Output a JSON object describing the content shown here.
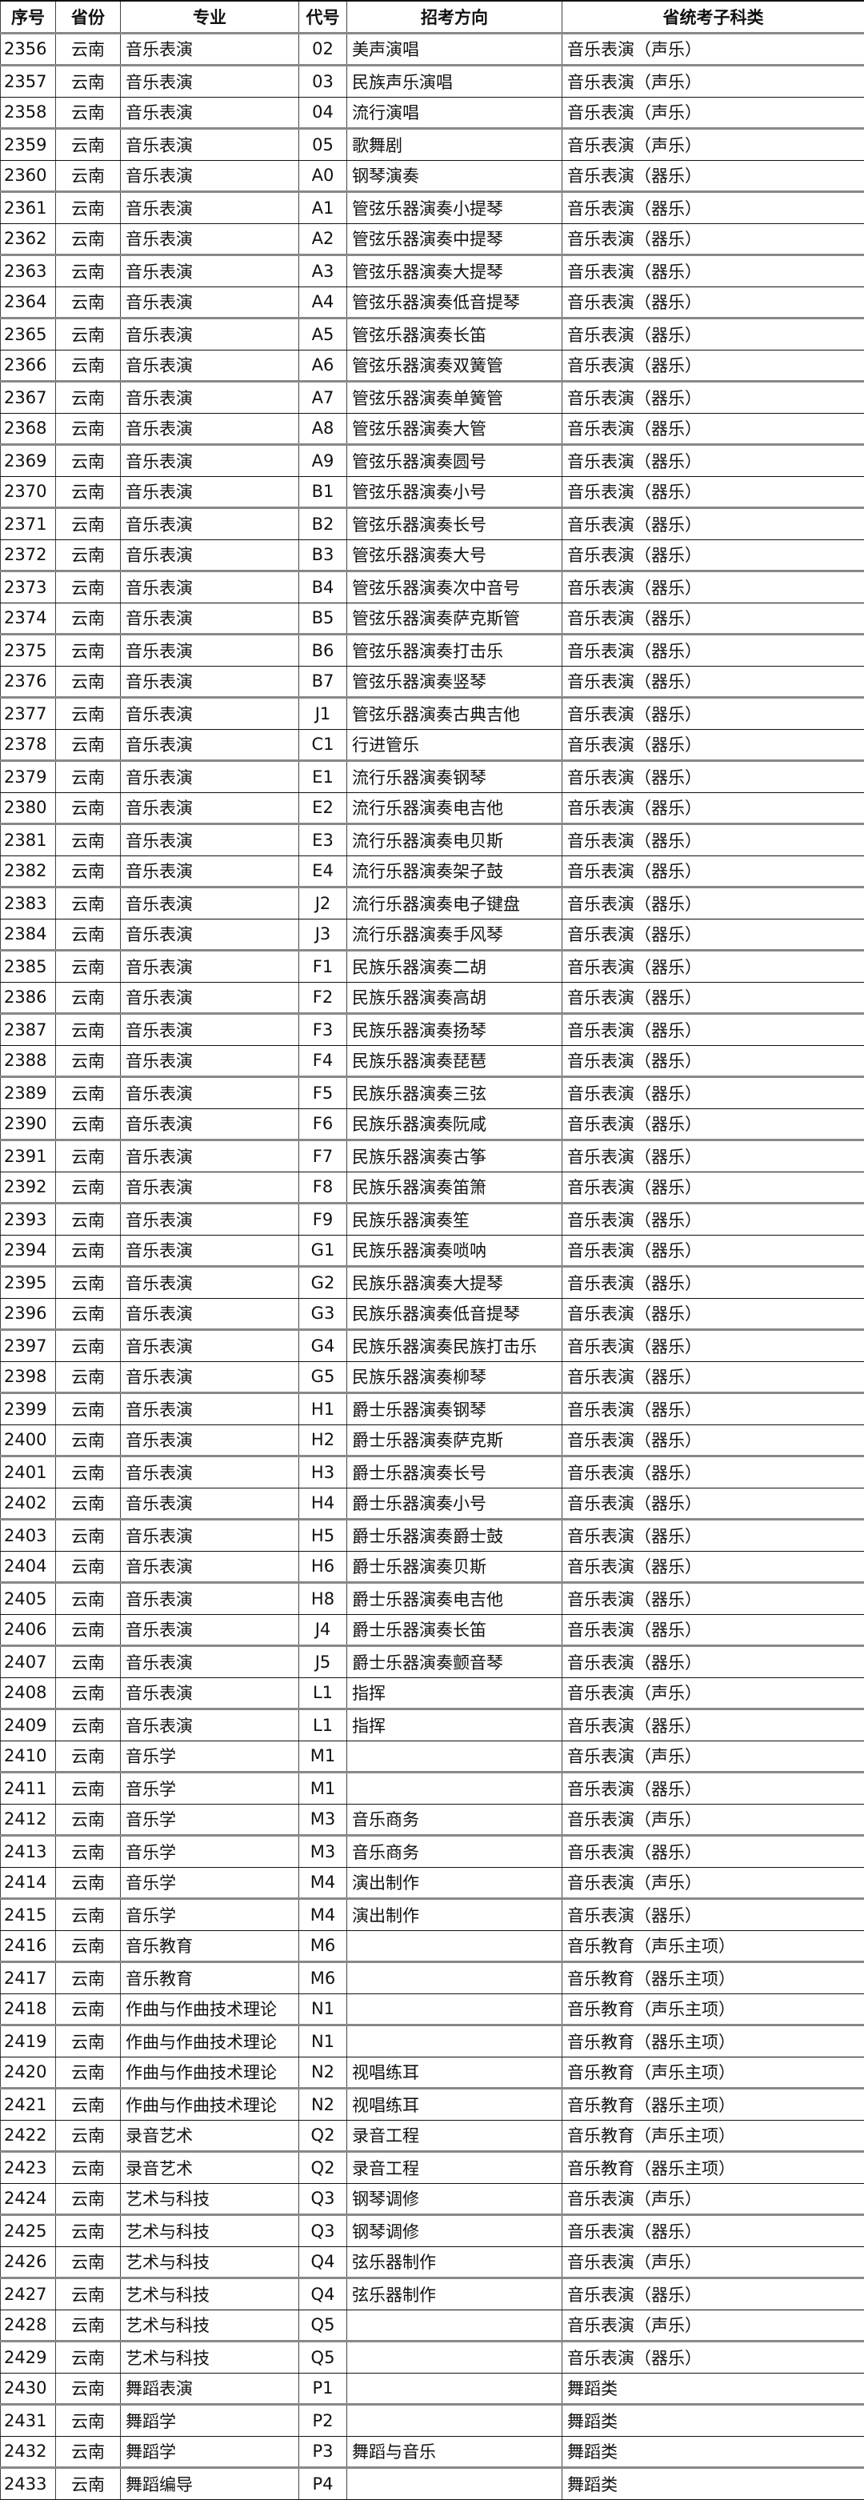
{
  "table": {
    "headers": [
      "序号",
      "省份",
      "专业",
      "代号",
      "招考方向",
      "省统考子科类"
    ],
    "rows": [
      [
        "2356",
        "云南",
        "音乐表演",
        "02",
        "美声演唱",
        "音乐表演（声乐）"
      ],
      [
        "2357",
        "云南",
        "音乐表演",
        "03",
        "民族声乐演唱",
        "音乐表演（声乐）"
      ],
      [
        "2358",
        "云南",
        "音乐表演",
        "04",
        "流行演唱",
        "音乐表演（声乐）"
      ],
      [
        "2359",
        "云南",
        "音乐表演",
        "05",
        "歌舞剧",
        "音乐表演（声乐）"
      ],
      [
        "2360",
        "云南",
        "音乐表演",
        "A0",
        "钢琴演奏",
        "音乐表演（器乐）"
      ],
      [
        "2361",
        "云南",
        "音乐表演",
        "A1",
        "管弦乐器演奏小提琴",
        "音乐表演（器乐）"
      ],
      [
        "2362",
        "云南",
        "音乐表演",
        "A2",
        "管弦乐器演奏中提琴",
        "音乐表演（器乐）"
      ],
      [
        "2363",
        "云南",
        "音乐表演",
        "A3",
        "管弦乐器演奏大提琴",
        "音乐表演（器乐）"
      ],
      [
        "2364",
        "云南",
        "音乐表演",
        "A4",
        "管弦乐器演奏低音提琴",
        "音乐表演（器乐）"
      ],
      [
        "2365",
        "云南",
        "音乐表演",
        "A5",
        "管弦乐器演奏长笛",
        "音乐表演（器乐）"
      ],
      [
        "2366",
        "云南",
        "音乐表演",
        "A6",
        "管弦乐器演奏双簧管",
        "音乐表演（器乐）"
      ],
      [
        "2367",
        "云南",
        "音乐表演",
        "A7",
        "管弦乐器演奏单簧管",
        "音乐表演（器乐）"
      ],
      [
        "2368",
        "云南",
        "音乐表演",
        "A8",
        "管弦乐器演奏大管",
        "音乐表演（器乐）"
      ],
      [
        "2369",
        "云南",
        "音乐表演",
        "A9",
        "管弦乐器演奏圆号",
        "音乐表演（器乐）"
      ],
      [
        "2370",
        "云南",
        "音乐表演",
        "B1",
        "管弦乐器演奏小号",
        "音乐表演（器乐）"
      ],
      [
        "2371",
        "云南",
        "音乐表演",
        "B2",
        "管弦乐器演奏长号",
        "音乐表演（器乐）"
      ],
      [
        "2372",
        "云南",
        "音乐表演",
        "B3",
        "管弦乐器演奏大号",
        "音乐表演（器乐）"
      ],
      [
        "2373",
        "云南",
        "音乐表演",
        "B4",
        "管弦乐器演奏次中音号",
        "音乐表演（器乐）"
      ],
      [
        "2374",
        "云南",
        "音乐表演",
        "B5",
        "管弦乐器演奏萨克斯管",
        "音乐表演（器乐）"
      ],
      [
        "2375",
        "云南",
        "音乐表演",
        "B6",
        "管弦乐器演奏打击乐",
        "音乐表演（器乐）"
      ],
      [
        "2376",
        "云南",
        "音乐表演",
        "B7",
        "管弦乐器演奏竖琴",
        "音乐表演（器乐）"
      ],
      [
        "2377",
        "云南",
        "音乐表演",
        "J1",
        "管弦乐器演奏古典吉他",
        "音乐表演（器乐）"
      ],
      [
        "2378",
        "云南",
        "音乐表演",
        "C1",
        "行进管乐",
        "音乐表演（器乐）"
      ],
      [
        "2379",
        "云南",
        "音乐表演",
        "E1",
        "流行乐器演奏钢琴",
        "音乐表演（器乐）"
      ],
      [
        "2380",
        "云南",
        "音乐表演",
        "E2",
        "流行乐器演奏电吉他",
        "音乐表演（器乐）"
      ],
      [
        "2381",
        "云南",
        "音乐表演",
        "E3",
        "流行乐器演奏电贝斯",
        "音乐表演（器乐）"
      ],
      [
        "2382",
        "云南",
        "音乐表演",
        "E4",
        "流行乐器演奏架子鼓",
        "音乐表演（器乐）"
      ],
      [
        "2383",
        "云南",
        "音乐表演",
        "J2",
        "流行乐器演奏电子键盘",
        "音乐表演（器乐）"
      ],
      [
        "2384",
        "云南",
        "音乐表演",
        "J3",
        "流行乐器演奏手风琴",
        "音乐表演（器乐）"
      ],
      [
        "2385",
        "云南",
        "音乐表演",
        "F1",
        "民族乐器演奏二胡",
        "音乐表演（器乐）"
      ],
      [
        "2386",
        "云南",
        "音乐表演",
        "F2",
        "民族乐器演奏高胡",
        "音乐表演（器乐）"
      ],
      [
        "2387",
        "云南",
        "音乐表演",
        "F3",
        "民族乐器演奏扬琴",
        "音乐表演（器乐）"
      ],
      [
        "2388",
        "云南",
        "音乐表演",
        "F4",
        "民族乐器演奏琵琶",
        "音乐表演（器乐）"
      ],
      [
        "2389",
        "云南",
        "音乐表演",
        "F5",
        "民族乐器演奏三弦",
        "音乐表演（器乐）"
      ],
      [
        "2390",
        "云南",
        "音乐表演",
        "F6",
        "民族乐器演奏阮咸",
        "音乐表演（器乐）"
      ],
      [
        "2391",
        "云南",
        "音乐表演",
        "F7",
        "民族乐器演奏古筝",
        "音乐表演（器乐）"
      ],
      [
        "2392",
        "云南",
        "音乐表演",
        "F8",
        "民族乐器演奏笛箫",
        "音乐表演（器乐）"
      ],
      [
        "2393",
        "云南",
        "音乐表演",
        "F9",
        "民族乐器演奏笙",
        "音乐表演（器乐）"
      ],
      [
        "2394",
        "云南",
        "音乐表演",
        "G1",
        "民族乐器演奏唢呐",
        "音乐表演（器乐）"
      ],
      [
        "2395",
        "云南",
        "音乐表演",
        "G2",
        "民族乐器演奏大提琴",
        "音乐表演（器乐）"
      ],
      [
        "2396",
        "云南",
        "音乐表演",
        "G3",
        "民族乐器演奏低音提琴",
        "音乐表演（器乐）"
      ],
      [
        "2397",
        "云南",
        "音乐表演",
        "G4",
        "民族乐器演奏民族打击乐",
        "音乐表演（器乐）"
      ],
      [
        "2398",
        "云南",
        "音乐表演",
        "G5",
        "民族乐器演奏柳琴",
        "音乐表演（器乐）"
      ],
      [
        "2399",
        "云南",
        "音乐表演",
        "H1",
        "爵士乐器演奏钢琴",
        "音乐表演（器乐）"
      ],
      [
        "2400",
        "云南",
        "音乐表演",
        "H2",
        "爵士乐器演奏萨克斯",
        "音乐表演（器乐）"
      ],
      [
        "2401",
        "云南",
        "音乐表演",
        "H3",
        "爵士乐器演奏长号",
        "音乐表演（器乐）"
      ],
      [
        "2402",
        "云南",
        "音乐表演",
        "H4",
        "爵士乐器演奏小号",
        "音乐表演（器乐）"
      ],
      [
        "2403",
        "云南",
        "音乐表演",
        "H5",
        "爵士乐器演奏爵士鼓",
        "音乐表演（器乐）"
      ],
      [
        "2404",
        "云南",
        "音乐表演",
        "H6",
        "爵士乐器演奏贝斯",
        "音乐表演（器乐）"
      ],
      [
        "2405",
        "云南",
        "音乐表演",
        "H8",
        "爵士乐器演奏电吉他",
        "音乐表演（器乐）"
      ],
      [
        "2406",
        "云南",
        "音乐表演",
        "J4",
        "爵士乐器演奏长笛",
        "音乐表演（器乐）"
      ],
      [
        "2407",
        "云南",
        "音乐表演",
        "J5",
        "爵士乐器演奏颤音琴",
        "音乐表演（器乐）"
      ],
      [
        "2408",
        "云南",
        "音乐表演",
        "L1",
        "指挥",
        "音乐表演（声乐）"
      ],
      [
        "2409",
        "云南",
        "音乐表演",
        "L1",
        "指挥",
        "音乐表演（器乐）"
      ],
      [
        "2410",
        "云南",
        "音乐学",
        "M1",
        "",
        "音乐表演（声乐）"
      ],
      [
        "2411",
        "云南",
        "音乐学",
        "M1",
        "",
        "音乐表演（器乐）"
      ],
      [
        "2412",
        "云南",
        "音乐学",
        "M3",
        "音乐商务",
        "音乐表演（声乐）"
      ],
      [
        "2413",
        "云南",
        "音乐学",
        "M3",
        "音乐商务",
        "音乐表演（器乐）"
      ],
      [
        "2414",
        "云南",
        "音乐学",
        "M4",
        "演出制作",
        "音乐表演（声乐）"
      ],
      [
        "2415",
        "云南",
        "音乐学",
        "M4",
        "演出制作",
        "音乐表演（器乐）"
      ],
      [
        "2416",
        "云南",
        "音乐教育",
        "M6",
        "",
        "音乐教育（声乐主项）"
      ],
      [
        "2417",
        "云南",
        "音乐教育",
        "M6",
        "",
        "音乐教育（器乐主项）"
      ],
      [
        "2418",
        "云南",
        "作曲与作曲技术理论",
        "N1",
        "",
        "音乐教育（声乐主项）"
      ],
      [
        "2419",
        "云南",
        "作曲与作曲技术理论",
        "N1",
        "",
        "音乐教育（器乐主项）"
      ],
      [
        "2420",
        "云南",
        "作曲与作曲技术理论",
        "N2",
        "视唱练耳",
        "音乐教育（声乐主项）"
      ],
      [
        "2421",
        "云南",
        "作曲与作曲技术理论",
        "N2",
        "视唱练耳",
        "音乐教育（器乐主项）"
      ],
      [
        "2422",
        "云南",
        "录音艺术",
        "Q2",
        "录音工程",
        "音乐教育（声乐主项）"
      ],
      [
        "2423",
        "云南",
        "录音艺术",
        "Q2",
        "录音工程",
        "音乐教育（器乐主项）"
      ],
      [
        "2424",
        "云南",
        "艺术与科技",
        "Q3",
        "钢琴调修",
        "音乐表演（声乐）"
      ],
      [
        "2425",
        "云南",
        "艺术与科技",
        "Q3",
        "钢琴调修",
        "音乐表演（器乐）"
      ],
      [
        "2426",
        "云南",
        "艺术与科技",
        "Q4",
        "弦乐器制作",
        "音乐表演（声乐）"
      ],
      [
        "2427",
        "云南",
        "艺术与科技",
        "Q4",
        "弦乐器制作",
        "音乐表演（器乐）"
      ],
      [
        "2428",
        "云南",
        "艺术与科技",
        "Q5",
        "",
        "音乐表演（声乐）"
      ],
      [
        "2429",
        "云南",
        "艺术与科技",
        "Q5",
        "",
        "音乐表演（器乐）"
      ],
      [
        "2430",
        "云南",
        "舞蹈表演",
        "P1",
        "",
        "舞蹈类"
      ],
      [
        "2431",
        "云南",
        "舞蹈学",
        "P2",
        "",
        "舞蹈类"
      ],
      [
        "2432",
        "云南",
        "舞蹈学",
        "P3",
        "舞蹈与音乐",
        "舞蹈类"
      ],
      [
        "2433",
        "云南",
        "舞蹈编导",
        "P4",
        "",
        "舞蹈类"
      ]
    ]
  }
}
